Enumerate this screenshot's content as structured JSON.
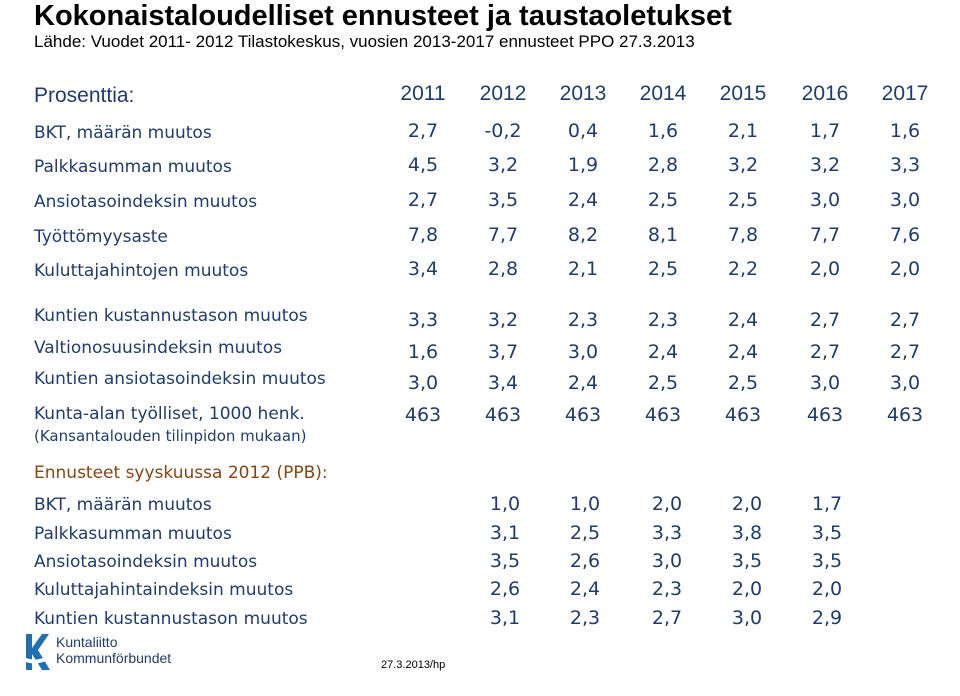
{
  "title": "Kokonaistaloudelliset ennusteet ja taustaoletukset",
  "source": "Lähde: Vuodet 2011- 2012 Tilastokeskus, vuosien 2013-2017 ennusteet PPO 27.3.2013",
  "header_label": "Prosenttia:",
  "years": [
    "2011",
    "2012",
    "2013",
    "2014",
    "2015",
    "2016",
    "2017"
  ],
  "main_rows": [
    {
      "label": "BKT, määrän muutos",
      "values": [
        "2,7",
        "-0,2",
        "0,4",
        "1,6",
        "2,1",
        "1,7",
        "1,6"
      ]
    },
    {
      "label": "Palkkasumman muutos",
      "values": [
        "4,5",
        "3,2",
        "1,9",
        "2,8",
        "3,2",
        "3,2",
        "3,3"
      ]
    },
    {
      "label": "Ansiotasoindeksin muutos",
      "values": [
        "2,7",
        "3,5",
        "2,4",
        "2,5",
        "2,5",
        "3,0",
        "3,0"
      ]
    },
    {
      "label": "Työttömyysaste",
      "values": [
        "7,8",
        "7,7",
        "8,2",
        "8,1",
        "7,8",
        "7,7",
        "7,6"
      ]
    },
    {
      "label": "Kuluttajahintojen muutos",
      "values": [
        "3,4",
        "2,8",
        "2,1",
        "2,5",
        "2,2",
        "2,0",
        "2,0"
      ]
    }
  ],
  "muni_rows": [
    {
      "label": "Kuntien kustannustason muutos",
      "values": [
        "3,3",
        "3,2",
        "2,3",
        "2,3",
        "2,4",
        "2,7",
        "2,7"
      ]
    },
    {
      "label": "Valtionosuusindeksin muutos",
      "values": [
        "1,6",
        "3,7",
        "3,0",
        "2,4",
        "2,4",
        "2,7",
        "2,7"
      ]
    },
    {
      "label": "Kuntien ansiotasoindeksin muutos",
      "values": [
        "3,0",
        "3,4",
        "2,4",
        "2,5",
        "2,5",
        "3,0",
        "3,0"
      ]
    }
  ],
  "employment_row": {
    "label": "Kunta-alan työlliset, 1000 henk.",
    "sublabel": "(Kansantalouden tilinpidon mukaan)",
    "values": [
      "463",
      "463",
      "463",
      "463",
      "463",
      "463",
      "463"
    ]
  },
  "forecast_heading": "Ennusteet syyskuussa 2012 (PPB):",
  "forecast_rows": [
    {
      "label": "BKT, määrän muutos",
      "values": [
        "1,0",
        "1,0",
        "2,0",
        "2,0",
        "1,7"
      ]
    },
    {
      "label": "Palkkasumman muutos",
      "values": [
        "3,1",
        "2,5",
        "3,3",
        "3,8",
        "3,5"
      ]
    },
    {
      "label": "Ansiotasoindeksin muutos",
      "values": [
        "3,5",
        "2,6",
        "3,0",
        "3,5",
        "3,5"
      ]
    },
    {
      "label": "Kuluttajahintaindeksin muutos",
      "values": [
        "2,6",
        "2,4",
        "2,3",
        "2,0",
        "2,0"
      ]
    },
    {
      "label": "Kuntien kustannustason muutos",
      "values": [
        "3,1",
        "2,3",
        "2,7",
        "3,0",
        "2,9"
      ]
    }
  ],
  "logo": {
    "line1": "Kuntaliitto",
    "line2": "Kommunförbundet"
  },
  "footer": "27.3.2013/hp",
  "colors": {
    "navy": "#1f3b73",
    "orange": "#8a4410",
    "logo_blue": "#1f6fb5"
  }
}
